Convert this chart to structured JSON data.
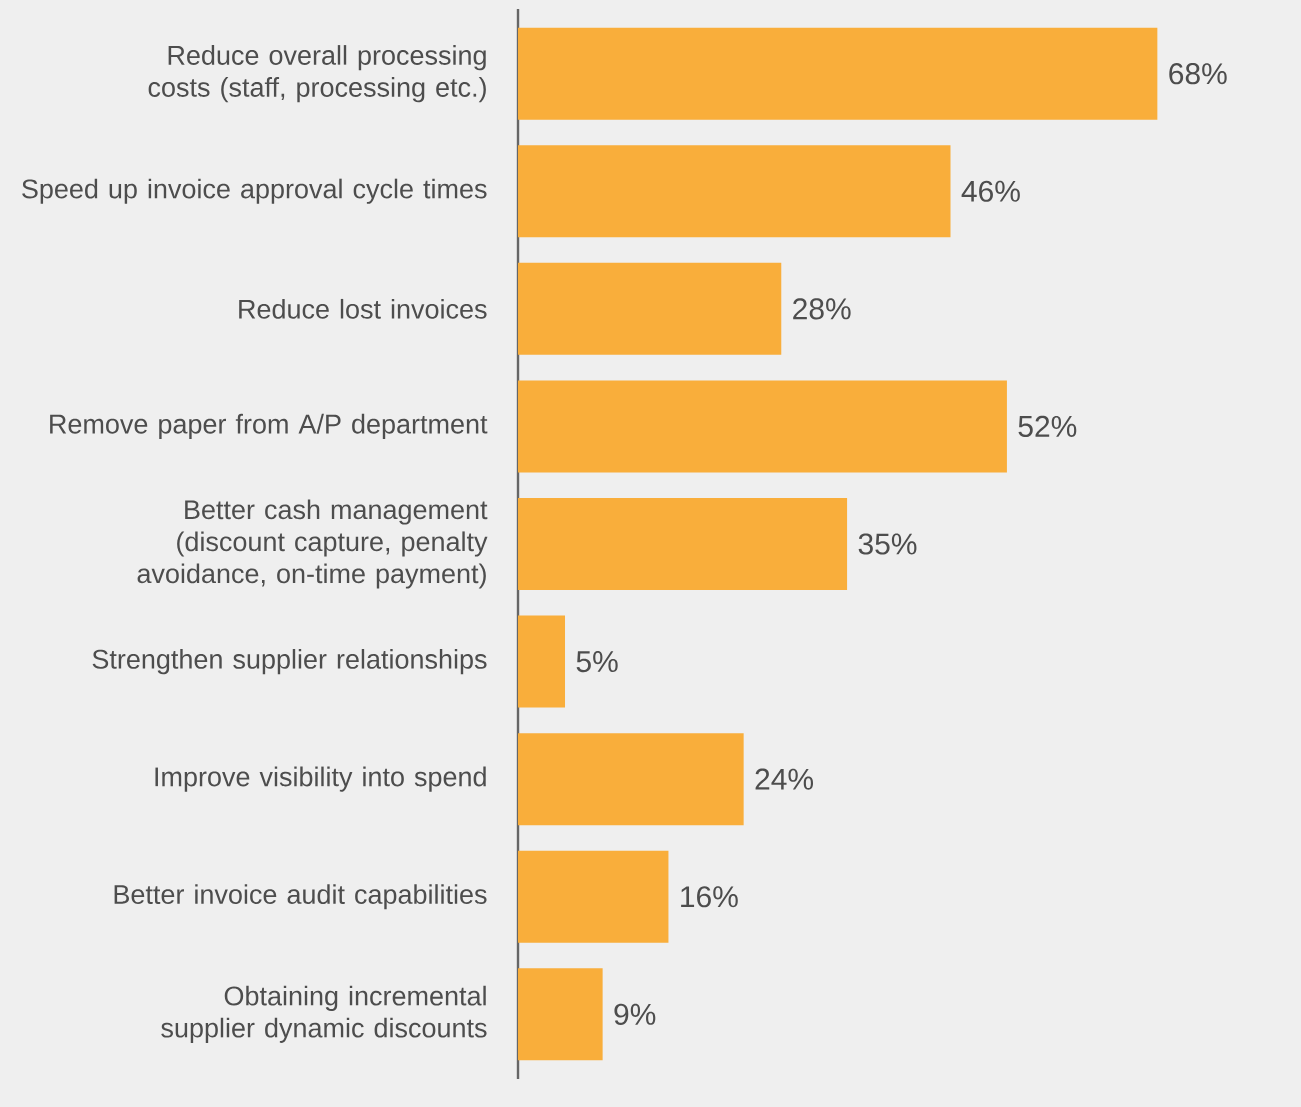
{
  "chart_data": {
    "type": "bar",
    "orientation": "horizontal",
    "categories": [
      "Reduce overall processing costs (staff, processing etc.)",
      "Speed up invoice approval cycle times",
      "Reduce lost invoices",
      "Remove paper from A/P department",
      "Better cash management (discount capture, penalty avoidance, on-time payment)",
      "Strengthen supplier relationships",
      "Improve visibility into spend",
      "Better invoice audit capabilities",
      "Obtaining incremental supplier dynamic discounts"
    ],
    "values": [
      68,
      46,
      28,
      52,
      35,
      5,
      24,
      16,
      9
    ],
    "value_labels": [
      "68%",
      "46%",
      "28%",
      "52%",
      "35%",
      "5%",
      "24%",
      "16%",
      "9%"
    ],
    "color": "#f9ae3b"
  }
}
